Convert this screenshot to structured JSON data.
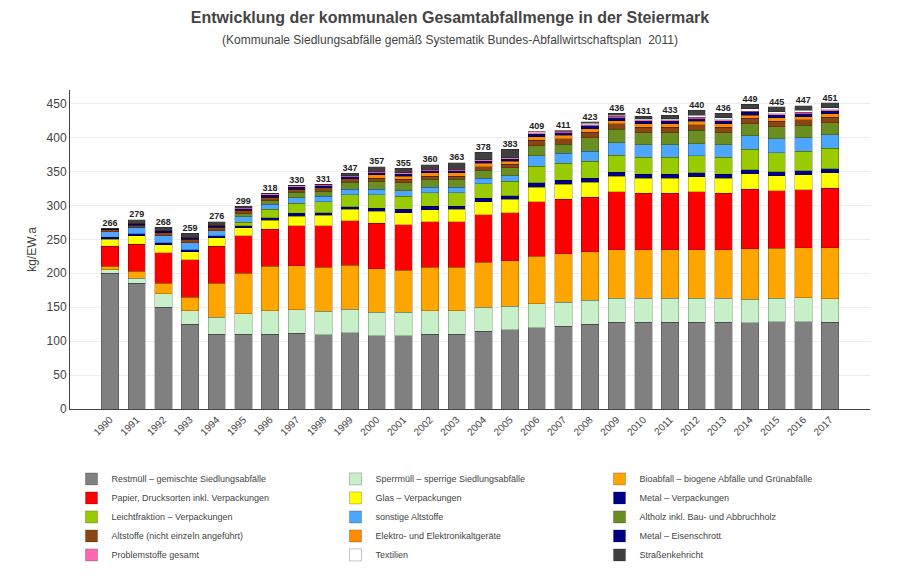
{
  "chart_data": {
    "type": "bar",
    "stacked": true,
    "title": "Entwicklung der kommunalen Gesamtabfallmenge in der Steiermark",
    "subtitle": "(Kommunale Siedlungsabfälle gemäß Systematik Bundes-Abfallwirtschaftsplan  2011)",
    "ylabel": "kg/EW.a",
    "categories": [
      "1990",
      "1991",
      "1992",
      "1993",
      "1994",
      "1995",
      "1996",
      "1997",
      "1998",
      "1999",
      "2000",
      "2001",
      "2002",
      "2003",
      "2004",
      "2005",
      "2006",
      "2007",
      "2008",
      "2009",
      "2010",
      "2011",
      "2012",
      "2013",
      "2014",
      "2015",
      "2016",
      "2017"
    ],
    "series": [
      {
        "name": "Restmüll – gemischte Siedlungsabfälle",
        "color": "#808080",
        "values": [
          200,
          185,
          150,
          125,
          110,
          110,
          110,
          111.325,
          109.339,
          112,
          108.182,
          108.172,
          110.466,
          110.478,
          114.697,
          116.479,
          120,
          122,
          125,
          128,
          128,
          128,
          128,
          128,
          127.15,
          128.288,
          128.865,
          127.717
        ]
      },
      {
        "name": "Sperrmüll – sperrige Siedlungsabfälle",
        "color": "#C8F0C8",
        "values": [
          5,
          8,
          20,
          20,
          25,
          30,
          35,
          34.789,
          34.79,
          35,
          34.421,
          34.418,
          34.521,
          34.524,
          34.908,
          34.549,
          35,
          35,
          35,
          35,
          35,
          35,
          35,
          35,
          34.768,
          35.079,
          35.236,
          34.923
        ]
      },
      {
        "name": "Bioabfall – biogene Abfälle und Grünabfälle",
        "color": "#FFA500",
        "values": [
          5,
          10,
          15,
          20,
          50,
          60,
          65,
          64.608,
          64.61,
          65,
          63.926,
          61.953,
          64.11,
          64.117,
          66.823,
          67.124,
          70,
          72,
          72,
          72,
          72,
          72,
          72,
          72,
          74.502,
          73.164,
          73.493,
          74.834
        ]
      },
      {
        "name": "Papier, Drucksorten inkl. Verpackungen",
        "color": "#FF0000",
        "values": [
          30,
          40,
          45,
          55,
          55,
          55,
          55,
          59.639,
          61.628,
          65,
          66.876,
          66.87,
          67.068,
          67.076,
          69.815,
          71.072,
          80,
          80,
          80,
          85,
          83,
          83,
          85,
          83,
          87.416,
          85.191,
          85.574,
          87.805
        ]
      },
      {
        "name": "Glas – Verpackungen",
        "color": "#FFFF00",
        "values": [
          10,
          12,
          12,
          12,
          12,
          12,
          13,
          13.916,
          14.91,
          17,
          17.702,
          17.701,
          17.753,
          17.755,
          18.95,
          19.742,
          22,
          22,
          22,
          23,
          22,
          22,
          22,
          22,
          22.847,
          22.05,
          22.149,
          22.949
        ]
      },
      {
        "name": "Metal – Verpackungen",
        "color": "#00008B",
        "values": [
          3,
          3,
          3,
          3,
          3,
          3,
          4,
          3.976,
          3.976,
          4,
          4.917,
          4.917,
          4.932,
          4.932,
          4.987,
          4.936,
          6,
          6,
          6,
          6,
          6,
          6,
          6,
          6,
          5.96,
          6.014,
          6.041,
          5.987
        ]
      },
      {
        "name": "Leichtfraktion – Verpackungen",
        "color": "#99CC00",
        "values": [
          0,
          0,
          0,
          0,
          0,
          5,
          12,
          14.91,
          15.904,
          18,
          19.669,
          19.668,
          19.726,
          19.728,
          21.942,
          21.716,
          25,
          25,
          25,
          25,
          25,
          25,
          25,
          25,
          29.801,
          28.063,
          28.189,
          29.934
        ]
      },
      {
        "name": "sonstige Altstoffe",
        "color": "#4DA6FF",
        "values": [
          8,
          10,
          10,
          10,
          8,
          8,
          8,
          7.952,
          7.952,
          8,
          7.868,
          7.867,
          7.89,
          7.891,
          7.979,
          7.897,
          15,
          15,
          15,
          18,
          18,
          18,
          18,
          18,
          19.867,
          20.045,
          20.135,
          19.956
        ]
      },
      {
        "name": "Altholz inkl. Bau- und Abbruchholz",
        "color": "#6B8E23",
        "values": [
          0,
          0,
          0,
          0,
          0,
          5,
          5,
          7.952,
          7.952,
          10,
          11.802,
          11.801,
          11.836,
          11.837,
          11.968,
          11.845,
          15,
          13,
          20,
          20,
          18,
          18,
          20,
          18,
          17.881,
          18.041,
          18.122,
          17.96
        ]
      },
      {
        "name": "Altstoffe (nicht einzeln angeführt)",
        "color": "#8B4513",
        "values": [
          3,
          3,
          5,
          5,
          5,
          5,
          5,
          4.97,
          4.97,
          5,
          4.917,
          4.917,
          4.932,
          4.932,
          4.987,
          4.936,
          8,
          8,
          8,
          8,
          8,
          8,
          8,
          8,
          7.947,
          8.018,
          8.054,
          7.982
        ]
      },
      {
        "name": "Elektro- und Elektronikaltgeräte",
        "color": "#FF8C00",
        "values": [
          0,
          0,
          0,
          0,
          0,
          0,
          0,
          0,
          0,
          0,
          4.917,
          4.917,
          4.932,
          4.932,
          4.987,
          4.936,
          5,
          5,
          5,
          5,
          5,
          5,
          5,
          5,
          4.967,
          5.011,
          5.034,
          4.989
        ]
      },
      {
        "name": "Metal – Eisenschrott",
        "color": "#000080",
        "values": [
          1,
          2,
          2,
          2,
          2,
          2,
          3,
          2.982,
          2.982,
          3,
          2.95,
          2.95,
          2.959,
          2.959,
          2.992,
          2.961,
          4,
          4,
          4,
          4,
          4,
          4,
          4,
          4,
          3.973,
          4.009,
          4.027,
          3.991
        ]
      },
      {
        "name": "Problemstoffe gesamt",
        "color": "#FF69B4",
        "values": [
          1,
          1,
          1,
          1,
          1,
          2,
          2,
          1.988,
          1.988,
          2,
          1.967,
          1.967,
          1.973,
          1.973,
          1.995,
          1.974,
          2,
          2,
          2,
          2,
          2,
          2,
          2,
          2,
          1.987,
          2.005,
          2.014,
          1.996
        ]
      },
      {
        "name": "Textilien",
        "color": "#FFFFFF",
        "values": [
          0,
          0,
          0,
          0,
          0,
          0,
          0,
          0,
          0,
          0,
          0,
          0,
          0,
          0,
          0,
          0,
          2,
          2,
          2,
          2,
          2,
          2,
          3,
          3,
          2.98,
          3.007,
          3.02,
          2.993
        ]
      },
      {
        "name": "Straßenkehricht",
        "color": "#404040",
        "values": [
          0,
          5,
          5,
          6,
          5,
          2,
          1,
          0.994,
          0,
          3,
          6.884,
          6.884,
          6.904,
          9.864,
          10.971,
          12.832,
          0,
          0,
          2,
          3,
          3,
          5,
          7,
          7,
          6.954,
          7.016,
          7.047,
          6.985
        ]
      }
    ],
    "totals": [
      266,
      279,
      268,
      259,
      276,
      299,
      318,
      330,
      331,
      347,
      357,
      355,
      360,
      363,
      378,
      383,
      409,
      411,
      423,
      436,
      431,
      433,
      440,
      436,
      449,
      445,
      447,
      451
    ],
    "ylim": [
      0,
      470
    ],
    "yticks": [
      0,
      50,
      100,
      150,
      200,
      250,
      300,
      350,
      400,
      450
    ],
    "grid": true,
    "legend": "bottom"
  }
}
